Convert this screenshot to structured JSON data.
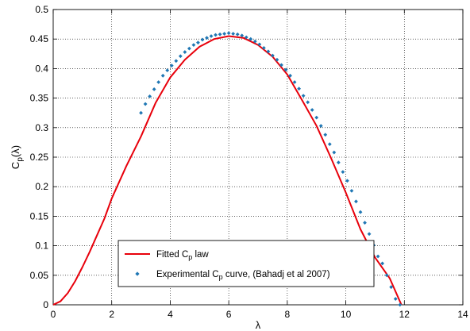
{
  "chart_data": {
    "type": "line",
    "title": "",
    "xlabel": "λ",
    "ylabel": {
      "main": "C",
      "sub": "p",
      "suffix": "(λ)"
    },
    "xlim": [
      0,
      14
    ],
    "ylim": [
      0,
      0.5
    ],
    "xticks": [
      "0",
      "2",
      "4",
      "6",
      "8",
      "10",
      "12",
      "14"
    ],
    "yticks": [
      "0",
      "0.05",
      "0.1",
      "0.15",
      "0.2",
      "0.25",
      "0.3",
      "0.35",
      "0.4",
      "0.45",
      "0.5"
    ],
    "grid": true,
    "legend_position": "bottom-center",
    "legend": [
      {
        "pre": "Fitted C",
        "sub": "p",
        "post": " law"
      },
      {
        "pre": "Experimental C",
        "sub": "p",
        "post": " curve, (Bahadj et al 2007)"
      }
    ],
    "series": [
      {
        "label_index": 0,
        "kind": "line",
        "color": "#e8000b",
        "x": [
          0,
          0.25,
          0.5,
          0.75,
          1,
          1.25,
          1.5,
          1.75,
          2,
          2.5,
          3,
          3.5,
          4,
          4.5,
          5,
          5.5,
          6,
          6.5,
          7,
          7.5,
          8,
          8.5,
          9,
          9.5,
          10,
          10.5,
          11,
          11.5,
          11.9
        ],
        "y": [
          0,
          0.006,
          0.02,
          0.04,
          0.064,
          0.09,
          0.118,
          0.146,
          0.18,
          0.235,
          0.285,
          0.342,
          0.385,
          0.415,
          0.437,
          0.45,
          0.455,
          0.452,
          0.44,
          0.42,
          0.39,
          0.347,
          0.303,
          0.248,
          0.19,
          0.128,
          0.08,
          0.045,
          0
        ]
      },
      {
        "label_index": 1,
        "kind": "scatter",
        "color": "#1f77b4",
        "x": [
          3.0,
          3.15,
          3.3,
          3.45,
          3.6,
          3.75,
          3.9,
          4.05,
          4.2,
          4.35,
          4.5,
          4.65,
          4.8,
          4.95,
          5.1,
          5.25,
          5.4,
          5.55,
          5.7,
          5.85,
          6.0,
          6.15,
          6.3,
          6.45,
          6.6,
          6.75,
          6.9,
          7.05,
          7.2,
          7.35,
          7.5,
          7.65,
          7.8,
          7.95,
          8.1,
          8.25,
          8.4,
          8.55,
          8.7,
          8.85,
          9.0,
          9.15,
          9.3,
          9.45,
          9.6,
          9.75,
          9.9,
          10.05,
          10.2,
          10.35,
          10.5,
          10.65,
          10.8,
          10.95,
          11.1,
          11.25,
          11.4,
          11.55,
          11.7,
          11.85
        ],
        "y": [
          0.325,
          0.34,
          0.353,
          0.365,
          0.377,
          0.388,
          0.397,
          0.405,
          0.413,
          0.421,
          0.428,
          0.434,
          0.44,
          0.444,
          0.449,
          0.452,
          0.455,
          0.457,
          0.458,
          0.459,
          0.46,
          0.459,
          0.458,
          0.456,
          0.453,
          0.45,
          0.446,
          0.441,
          0.435,
          0.429,
          0.422,
          0.415,
          0.406,
          0.398,
          0.388,
          0.377,
          0.366,
          0.354,
          0.343,
          0.33,
          0.317,
          0.303,
          0.288,
          0.272,
          0.258,
          0.241,
          0.225,
          0.21,
          0.193,
          0.175,
          0.157,
          0.139,
          0.12,
          0.101,
          0.082,
          0.07,
          0.05,
          0.03,
          0.01,
          0
        ]
      }
    ]
  }
}
